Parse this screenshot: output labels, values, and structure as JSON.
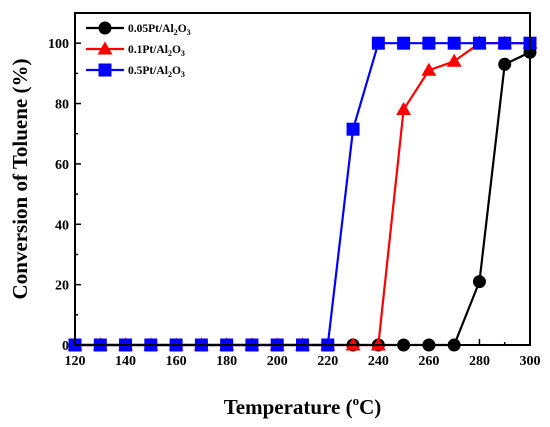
{
  "chart_data": {
    "type": "line",
    "xlabel": "Temperature (oC)",
    "xlabel_parts": {
      "main": "Temperature (",
      "sup": "o",
      "end": "C)"
    },
    "ylabel": "Conversion of Toluene (%)",
    "xlim": [
      120,
      300
    ],
    "ylim": [
      0,
      110
    ],
    "x_ticks": [
      "120",
      "140",
      "160",
      "180",
      "200",
      "220",
      "240",
      "260",
      "280",
      "300"
    ],
    "y_ticks": [
      "0",
      "20",
      "40",
      "60",
      "80",
      "100"
    ],
    "grid": false,
    "legend_position": "top-left",
    "series": [
      {
        "name": "0.05Pt/Al2O3",
        "label_parts": [
          "0.05Pt/Al",
          "2",
          "O",
          "3"
        ],
        "color": "#000000",
        "marker": "circle",
        "x": [
          120,
          130,
          140,
          150,
          160,
          170,
          180,
          190,
          200,
          210,
          220,
          230,
          240,
          250,
          260,
          270,
          280,
          290,
          300
        ],
        "y": [
          0,
          0,
          0,
          0,
          0,
          0,
          0,
          0,
          0,
          0,
          0,
          0,
          0,
          0,
          0,
          0,
          21,
          93,
          97
        ]
      },
      {
        "name": "0.1Pt/Al2O3",
        "label_parts": [
          "0.1Pt/Al",
          "2",
          "O",
          "3"
        ],
        "color": "#ff0000",
        "marker": "triangle",
        "x": [
          120,
          130,
          140,
          150,
          160,
          170,
          180,
          190,
          200,
          210,
          220,
          230,
          240,
          250,
          260,
          270,
          280,
          290,
          300
        ],
        "y": [
          0,
          0,
          0,
          0,
          0,
          0,
          0,
          0,
          0,
          0,
          0,
          0,
          0,
          78,
          91,
          94,
          100,
          100,
          100
        ]
      },
      {
        "name": "0.5Pt/Al2O3",
        "label_parts": [
          "0.5Pt/Al",
          "2",
          "O",
          "3"
        ],
        "color": "#0000ff",
        "marker": "square",
        "x": [
          120,
          130,
          140,
          150,
          160,
          170,
          180,
          190,
          200,
          210,
          220,
          230,
          240,
          250,
          260,
          270,
          280,
          290,
          300
        ],
        "y": [
          0,
          0,
          0,
          0,
          0,
          0,
          0,
          0,
          0,
          0,
          0,
          71.5,
          100,
          100,
          100,
          100,
          100,
          100,
          100
        ]
      }
    ]
  }
}
